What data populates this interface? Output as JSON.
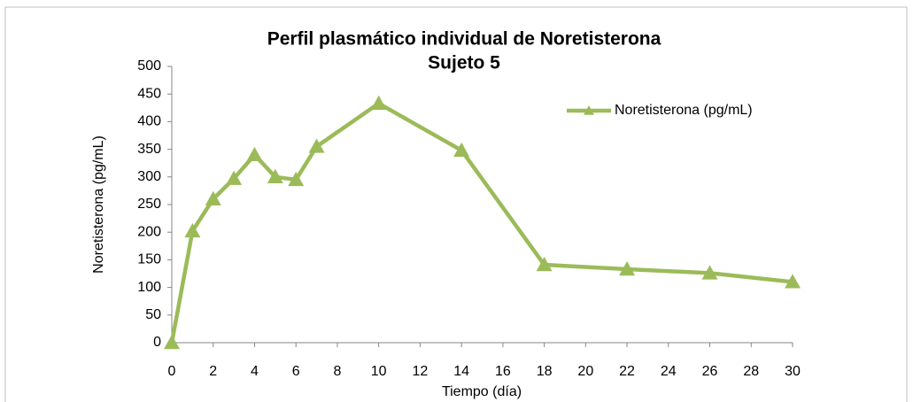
{
  "chart_data": {
    "type": "line",
    "title": "Perfil plasmático individual de Noretisterona",
    "subtitle": "Sujeto 5",
    "x_label": "Tiempo (día)",
    "y_label": "Noretisterona  (pg/mL)",
    "x": [
      0,
      1,
      2,
      3,
      4,
      5,
      6,
      7,
      10,
      14,
      18,
      22,
      26,
      30
    ],
    "series": [
      {
        "name": "Noretisterona (pg/mL)",
        "color": "#9bbb59",
        "values": [
          0,
          202,
          260,
          297,
          340,
          300,
          295,
          355,
          433,
          348,
          141,
          133,
          126,
          110
        ]
      }
    ],
    "xlim": [
      0,
      30
    ],
    "xticks": [
      0,
      2,
      4,
      6,
      8,
      10,
      12,
      14,
      16,
      18,
      20,
      22,
      24,
      26,
      28,
      30
    ],
    "ylim": [
      0,
      500
    ],
    "yticks": [
      0,
      50,
      100,
      150,
      200,
      250,
      300,
      350,
      400,
      450,
      500
    ],
    "legend": "upper right"
  }
}
